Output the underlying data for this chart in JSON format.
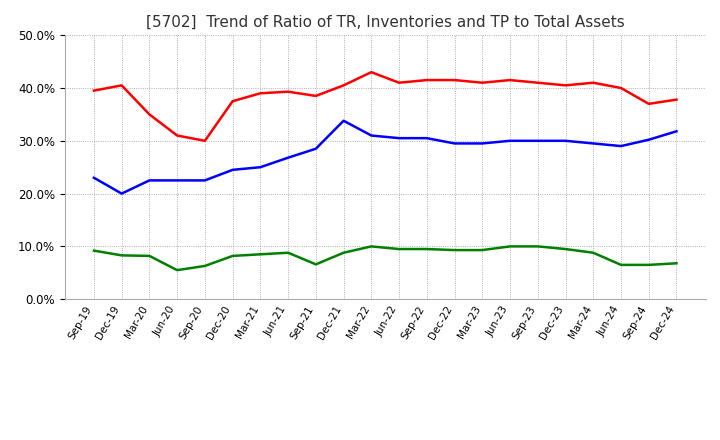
{
  "title": "[5702]  Trend of Ratio of TR, Inventories and TP to Total Assets",
  "x_labels": [
    "Sep-19",
    "Dec-19",
    "Mar-20",
    "Jun-20",
    "Sep-20",
    "Dec-20",
    "Mar-21",
    "Jun-21",
    "Sep-21",
    "Dec-21",
    "Mar-22",
    "Jun-22",
    "Sep-22",
    "Dec-22",
    "Mar-23",
    "Jun-23",
    "Sep-23",
    "Dec-23",
    "Mar-24",
    "Jun-24",
    "Sep-24",
    "Dec-24"
  ],
  "trade_receivables": [
    0.395,
    0.405,
    0.35,
    0.31,
    0.3,
    0.375,
    0.39,
    0.393,
    0.385,
    0.405,
    0.43,
    0.41,
    0.415,
    0.415,
    0.41,
    0.415,
    0.41,
    0.405,
    0.41,
    0.4,
    0.37,
    0.378
  ],
  "inventories": [
    0.23,
    0.2,
    0.225,
    0.225,
    0.225,
    0.245,
    0.25,
    0.268,
    0.285,
    0.338,
    0.31,
    0.305,
    0.305,
    0.295,
    0.295,
    0.3,
    0.3,
    0.3,
    0.295,
    0.29,
    0.302,
    0.318
  ],
  "trade_payables": [
    0.092,
    0.083,
    0.082,
    0.055,
    0.063,
    0.082,
    0.085,
    0.088,
    0.066,
    0.088,
    0.1,
    0.095,
    0.095,
    0.093,
    0.093,
    0.1,
    0.1,
    0.095,
    0.088,
    0.065,
    0.065,
    0.068
  ],
  "tr_color": "#ff0000",
  "inv_color": "#0000ff",
  "tp_color": "#008000",
  "ylim": [
    0.0,
    0.5
  ],
  "yticks": [
    0.0,
    0.1,
    0.2,
    0.3,
    0.4,
    0.5
  ],
  "background_color": "#ffffff",
  "grid_color": "#999999",
  "title_fontsize": 11,
  "line_width": 1.8
}
